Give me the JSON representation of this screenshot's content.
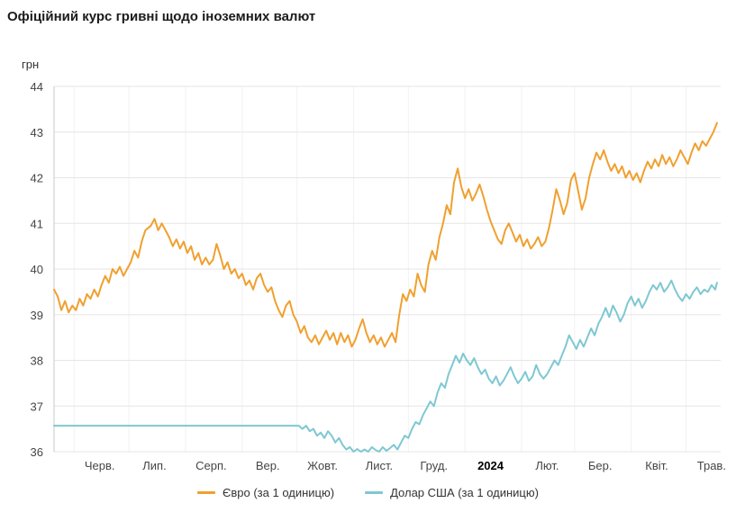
{
  "header": {
    "title": "Офіційний курс гривні щодо іноземних валют"
  },
  "chart_data": {
    "type": "line",
    "title": "Офіційний курс гривні щодо іноземних валют",
    "xlabel": "",
    "ylabel": "грн",
    "ylim": [
      36,
      44
    ],
    "xlim": [
      0,
      365
    ],
    "grid": true,
    "legend_position": "bottom",
    "y_ticks": [
      36,
      37,
      38,
      39,
      40,
      41,
      42,
      43,
      44
    ],
    "x_ticks": [
      {
        "label": "Черв.",
        "x": 25
      },
      {
        "label": "Лип.",
        "x": 55
      },
      {
        "label": "Серп.",
        "x": 86
      },
      {
        "label": "Вер.",
        "x": 117
      },
      {
        "label": "Жовт.",
        "x": 147
      },
      {
        "label": "Лист.",
        "x": 178
      },
      {
        "label": "Груд.",
        "x": 208
      },
      {
        "label": "2024",
        "x": 239,
        "bold": true
      },
      {
        "label": "Лют.",
        "x": 270
      },
      {
        "label": "Бер.",
        "x": 299
      },
      {
        "label": "Квіт.",
        "x": 330
      },
      {
        "label": "Трав.",
        "x": 360
      }
    ],
    "x_gridlines": [
      11,
      41,
      72,
      103,
      133,
      164,
      194,
      225,
      256,
      285,
      316,
      346
    ],
    "series": [
      {
        "id": "eur-line",
        "name": "Євро (за 1 одиницю)",
        "color": "#f0a02f",
        "points": [
          [
            0,
            39.55
          ],
          [
            2,
            39.4
          ],
          [
            4,
            39.1
          ],
          [
            6,
            39.3
          ],
          [
            8,
            39.05
          ],
          [
            10,
            39.2
          ],
          [
            12,
            39.1
          ],
          [
            14,
            39.35
          ],
          [
            16,
            39.2
          ],
          [
            18,
            39.45
          ],
          [
            20,
            39.35
          ],
          [
            22,
            39.55
          ],
          [
            24,
            39.4
          ],
          [
            26,
            39.65
          ],
          [
            28,
            39.85
          ],
          [
            30,
            39.7
          ],
          [
            32,
            40.0
          ],
          [
            34,
            39.9
          ],
          [
            36,
            40.05
          ],
          [
            38,
            39.85
          ],
          [
            40,
            40.0
          ],
          [
            42,
            40.15
          ],
          [
            44,
            40.4
          ],
          [
            46,
            40.25
          ],
          [
            48,
            40.6
          ],
          [
            50,
            40.85
          ],
          [
            53,
            40.95
          ],
          [
            55,
            41.1
          ],
          [
            57,
            40.85
          ],
          [
            59,
            41.0
          ],
          [
            61,
            40.85
          ],
          [
            63,
            40.7
          ],
          [
            65,
            40.5
          ],
          [
            67,
            40.65
          ],
          [
            69,
            40.45
          ],
          [
            71,
            40.6
          ],
          [
            73,
            40.35
          ],
          [
            75,
            40.5
          ],
          [
            77,
            40.2
          ],
          [
            79,
            40.35
          ],
          [
            81,
            40.1
          ],
          [
            83,
            40.25
          ],
          [
            85,
            40.1
          ],
          [
            87,
            40.2
          ],
          [
            89,
            40.55
          ],
          [
            91,
            40.3
          ],
          [
            93,
            40.0
          ],
          [
            95,
            40.15
          ],
          [
            97,
            39.9
          ],
          [
            99,
            40.0
          ],
          [
            101,
            39.8
          ],
          [
            103,
            39.9
          ],
          [
            105,
            39.65
          ],
          [
            107,
            39.75
          ],
          [
            109,
            39.55
          ],
          [
            111,
            39.8
          ],
          [
            113,
            39.9
          ],
          [
            115,
            39.65
          ],
          [
            117,
            39.5
          ],
          [
            119,
            39.6
          ],
          [
            121,
            39.3
          ],
          [
            123,
            39.1
          ],
          [
            125,
            38.95
          ],
          [
            127,
            39.2
          ],
          [
            129,
            39.3
          ],
          [
            131,
            39.0
          ],
          [
            133,
            38.85
          ],
          [
            135,
            38.6
          ],
          [
            137,
            38.75
          ],
          [
            139,
            38.5
          ],
          [
            141,
            38.4
          ],
          [
            143,
            38.55
          ],
          [
            145,
            38.35
          ],
          [
            147,
            38.5
          ],
          [
            149,
            38.65
          ],
          [
            151,
            38.45
          ],
          [
            153,
            38.6
          ],
          [
            155,
            38.35
          ],
          [
            157,
            38.6
          ],
          [
            159,
            38.4
          ],
          [
            161,
            38.55
          ],
          [
            163,
            38.3
          ],
          [
            165,
            38.45
          ],
          [
            167,
            38.7
          ],
          [
            169,
            38.9
          ],
          [
            171,
            38.6
          ],
          [
            173,
            38.4
          ],
          [
            175,
            38.55
          ],
          [
            177,
            38.35
          ],
          [
            179,
            38.5
          ],
          [
            181,
            38.3
          ],
          [
            183,
            38.45
          ],
          [
            185,
            38.6
          ],
          [
            187,
            38.4
          ],
          [
            189,
            39.0
          ],
          [
            191,
            39.45
          ],
          [
            193,
            39.3
          ],
          [
            195,
            39.55
          ],
          [
            197,
            39.4
          ],
          [
            199,
            39.9
          ],
          [
            201,
            39.65
          ],
          [
            203,
            39.5
          ],
          [
            205,
            40.1
          ],
          [
            207,
            40.4
          ],
          [
            209,
            40.2
          ],
          [
            211,
            40.7
          ],
          [
            213,
            41.0
          ],
          [
            215,
            41.4
          ],
          [
            217,
            41.2
          ],
          [
            219,
            41.9
          ],
          [
            221,
            42.2
          ],
          [
            223,
            41.8
          ],
          [
            225,
            41.55
          ],
          [
            227,
            41.75
          ],
          [
            229,
            41.5
          ],
          [
            231,
            41.65
          ],
          [
            233,
            41.85
          ],
          [
            235,
            41.6
          ],
          [
            237,
            41.3
          ],
          [
            239,
            41.05
          ],
          [
            241,
            40.85
          ],
          [
            243,
            40.65
          ],
          [
            245,
            40.55
          ],
          [
            247,
            40.85
          ],
          [
            249,
            41.0
          ],
          [
            251,
            40.8
          ],
          [
            253,
            40.6
          ],
          [
            255,
            40.75
          ],
          [
            257,
            40.5
          ],
          [
            259,
            40.65
          ],
          [
            261,
            40.45
          ],
          [
            263,
            40.55
          ],
          [
            265,
            40.7
          ],
          [
            267,
            40.5
          ],
          [
            269,
            40.6
          ],
          [
            271,
            40.9
          ],
          [
            273,
            41.3
          ],
          [
            275,
            41.75
          ],
          [
            277,
            41.5
          ],
          [
            279,
            41.2
          ],
          [
            281,
            41.45
          ],
          [
            283,
            41.95
          ],
          [
            285,
            42.1
          ],
          [
            287,
            41.7
          ],
          [
            289,
            41.3
          ],
          [
            291,
            41.55
          ],
          [
            293,
            42.0
          ],
          [
            295,
            42.3
          ],
          [
            297,
            42.55
          ],
          [
            299,
            42.4
          ],
          [
            301,
            42.6
          ],
          [
            303,
            42.35
          ],
          [
            305,
            42.15
          ],
          [
            307,
            42.3
          ],
          [
            309,
            42.1
          ],
          [
            311,
            42.25
          ],
          [
            313,
            42.0
          ],
          [
            315,
            42.15
          ],
          [
            317,
            41.95
          ],
          [
            319,
            42.1
          ],
          [
            321,
            41.9
          ],
          [
            323,
            42.15
          ],
          [
            325,
            42.35
          ],
          [
            327,
            42.2
          ],
          [
            329,
            42.4
          ],
          [
            331,
            42.25
          ],
          [
            333,
            42.5
          ],
          [
            335,
            42.3
          ],
          [
            337,
            42.45
          ],
          [
            339,
            42.25
          ],
          [
            341,
            42.4
          ],
          [
            343,
            42.6
          ],
          [
            345,
            42.45
          ],
          [
            347,
            42.3
          ],
          [
            349,
            42.55
          ],
          [
            351,
            42.75
          ],
          [
            353,
            42.6
          ],
          [
            355,
            42.8
          ],
          [
            357,
            42.7
          ],
          [
            359,
            42.85
          ],
          [
            361,
            43.0
          ],
          [
            363,
            43.2
          ]
        ]
      },
      {
        "id": "usd-line",
        "name": "Долар США (за 1 одиницю)",
        "color": "#7ec8d2",
        "points": [
          [
            0,
            36.57
          ],
          [
            134,
            36.57
          ],
          [
            136,
            36.5
          ],
          [
            138,
            36.57
          ],
          [
            140,
            36.45
          ],
          [
            142,
            36.5
          ],
          [
            144,
            36.35
          ],
          [
            146,
            36.42
          ],
          [
            148,
            36.3
          ],
          [
            150,
            36.45
          ],
          [
            152,
            36.35
          ],
          [
            154,
            36.2
          ],
          [
            156,
            36.3
          ],
          [
            158,
            36.15
          ],
          [
            160,
            36.05
          ],
          [
            162,
            36.1
          ],
          [
            164,
            36.0
          ],
          [
            166,
            36.06
          ],
          [
            168,
            36.0
          ],
          [
            170,
            36.05
          ],
          [
            172,
            36.0
          ],
          [
            174,
            36.1
          ],
          [
            176,
            36.04
          ],
          [
            178,
            36.0
          ],
          [
            180,
            36.1
          ],
          [
            182,
            36.02
          ],
          [
            184,
            36.08
          ],
          [
            186,
            36.15
          ],
          [
            188,
            36.05
          ],
          [
            190,
            36.2
          ],
          [
            192,
            36.35
          ],
          [
            194,
            36.3
          ],
          [
            196,
            36.5
          ],
          [
            198,
            36.65
          ],
          [
            200,
            36.6
          ],
          [
            202,
            36.8
          ],
          [
            204,
            36.95
          ],
          [
            206,
            37.1
          ],
          [
            208,
            37.0
          ],
          [
            210,
            37.3
          ],
          [
            212,
            37.5
          ],
          [
            214,
            37.4
          ],
          [
            216,
            37.7
          ],
          [
            218,
            37.9
          ],
          [
            220,
            38.1
          ],
          [
            222,
            37.95
          ],
          [
            224,
            38.15
          ],
          [
            226,
            38.0
          ],
          [
            228,
            37.9
          ],
          [
            230,
            38.05
          ],
          [
            232,
            37.85
          ],
          [
            234,
            37.7
          ],
          [
            236,
            37.8
          ],
          [
            238,
            37.6
          ],
          [
            240,
            37.5
          ],
          [
            242,
            37.65
          ],
          [
            244,
            37.45
          ],
          [
            246,
            37.55
          ],
          [
            248,
            37.7
          ],
          [
            250,
            37.85
          ],
          [
            252,
            37.65
          ],
          [
            254,
            37.5
          ],
          [
            256,
            37.6
          ],
          [
            258,
            37.75
          ],
          [
            260,
            37.55
          ],
          [
            262,
            37.65
          ],
          [
            264,
            37.9
          ],
          [
            266,
            37.7
          ],
          [
            268,
            37.6
          ],
          [
            270,
            37.7
          ],
          [
            272,
            37.85
          ],
          [
            274,
            38.0
          ],
          [
            276,
            37.9
          ],
          [
            278,
            38.1
          ],
          [
            280,
            38.3
          ],
          [
            282,
            38.55
          ],
          [
            284,
            38.4
          ],
          [
            286,
            38.25
          ],
          [
            288,
            38.45
          ],
          [
            290,
            38.3
          ],
          [
            292,
            38.5
          ],
          [
            294,
            38.7
          ],
          [
            296,
            38.55
          ],
          [
            298,
            38.8
          ],
          [
            300,
            38.95
          ],
          [
            302,
            39.15
          ],
          [
            304,
            38.95
          ],
          [
            306,
            39.2
          ],
          [
            308,
            39.05
          ],
          [
            310,
            38.85
          ],
          [
            312,
            39.0
          ],
          [
            314,
            39.25
          ],
          [
            316,
            39.4
          ],
          [
            318,
            39.2
          ],
          [
            320,
            39.35
          ],
          [
            322,
            39.15
          ],
          [
            324,
            39.3
          ],
          [
            326,
            39.5
          ],
          [
            328,
            39.65
          ],
          [
            330,
            39.55
          ],
          [
            332,
            39.7
          ],
          [
            334,
            39.5
          ],
          [
            336,
            39.6
          ],
          [
            338,
            39.75
          ],
          [
            340,
            39.55
          ],
          [
            342,
            39.4
          ],
          [
            344,
            39.3
          ],
          [
            346,
            39.45
          ],
          [
            348,
            39.35
          ],
          [
            350,
            39.5
          ],
          [
            352,
            39.6
          ],
          [
            354,
            39.45
          ],
          [
            356,
            39.55
          ],
          [
            358,
            39.5
          ],
          [
            360,
            39.65
          ],
          [
            362,
            39.55
          ],
          [
            363,
            39.7
          ]
        ]
      }
    ]
  }
}
